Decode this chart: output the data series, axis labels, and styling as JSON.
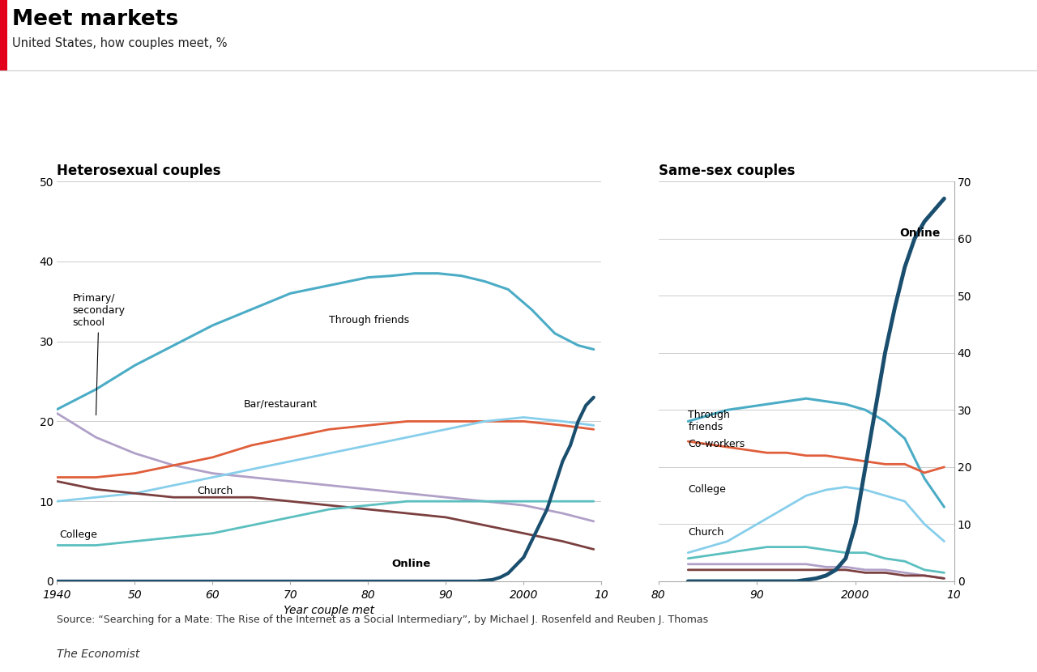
{
  "title": "Meet markets",
  "subtitle": "United States, how couples meet, %",
  "source": "Source: “Searching for a Mate: The Rise of the Internet as a Social Intermediary”, by Michael J. Rosenfeld and Reuben J. Thomas",
  "credit": "The Economist",
  "red_bar_color": "#e3001b",
  "het": {
    "title": "Heterosexual couples",
    "xlim": [
      1940,
      2010
    ],
    "ylim": [
      0,
      50
    ],
    "yticks": [
      0,
      10,
      20,
      30,
      40,
      50
    ],
    "xticks": [
      1940,
      1950,
      1960,
      1970,
      1980,
      1990,
      2000,
      2010
    ],
    "xticklabels": [
      "1940",
      "50",
      "60",
      "70",
      "80",
      "90",
      "2000",
      "10"
    ],
    "through_friends": {
      "x": [
        1940,
        1945,
        1950,
        1955,
        1960,
        1965,
        1970,
        1975,
        1980,
        1983,
        1986,
        1989,
        1992,
        1995,
        1998,
        2001,
        2004,
        2007,
        2009
      ],
      "y": [
        21.5,
        24,
        27,
        29.5,
        32,
        34,
        36,
        37,
        38,
        38.2,
        38.5,
        38.5,
        38.2,
        37.5,
        36.5,
        34,
        31,
        29.5,
        29
      ],
      "color": "#4bacc6",
      "lw": 2.2
    },
    "primary_school": {
      "x": [
        1940,
        1945,
        1950,
        1955,
        1960,
        1965,
        1970,
        1975,
        1980,
        1985,
        1990,
        1995,
        2000,
        2005,
        2009
      ],
      "y": [
        21,
        18,
        16,
        14.5,
        13.5,
        13,
        12.5,
        12,
        11.5,
        11,
        10.5,
        10,
        9.5,
        8.5,
        7.5
      ],
      "color": "#b0a0c8",
      "lw": 2.0
    },
    "bar_restaurant": {
      "x": [
        1940,
        1945,
        1950,
        1955,
        1960,
        1965,
        1970,
        1975,
        1980,
        1985,
        1990,
        1995,
        2000,
        2005,
        2009
      ],
      "y": [
        13,
        13,
        13.5,
        14.5,
        15.5,
        17,
        18,
        19,
        19.5,
        20,
        20,
        20,
        20,
        19.5,
        19
      ],
      "color": "#e05e3a",
      "lw": 2.0
    },
    "coworkers": {
      "x": [
        1940,
        1945,
        1950,
        1955,
        1960,
        1965,
        1970,
        1975,
        1980,
        1985,
        1990,
        1995,
        2000,
        2005,
        2009
      ],
      "y": [
        10,
        10.5,
        11,
        12,
        13,
        14,
        15,
        16,
        17,
        18,
        19,
        20,
        20.5,
        20,
        19.5
      ],
      "color": "#87ceeb",
      "lw": 2.0
    },
    "church": {
      "x": [
        1940,
        1945,
        1950,
        1955,
        1960,
        1965,
        1970,
        1975,
        1980,
        1985,
        1990,
        1995,
        2000,
        2005,
        2009
      ],
      "y": [
        12.5,
        11.5,
        11,
        10.5,
        10.5,
        10.5,
        10,
        9.5,
        9,
        8.5,
        8,
        7,
        6,
        5,
        4
      ],
      "color": "#7b3f3f",
      "lw": 2.0
    },
    "college": {
      "x": [
        1940,
        1945,
        1950,
        1955,
        1960,
        1965,
        1970,
        1975,
        1980,
        1985,
        1990,
        1995,
        2000,
        2005,
        2009
      ],
      "y": [
        4.5,
        4.5,
        5,
        5.5,
        6,
        7,
        8,
        9,
        9.5,
        10,
        10,
        10,
        10,
        10,
        10
      ],
      "color": "#5bbfbf",
      "lw": 2.0
    },
    "online": {
      "x": [
        1940,
        1975,
        1980,
        1985,
        1990,
        1992,
        1994,
        1996,
        1997,
        1998,
        1999,
        2000,
        2001,
        2002,
        2003,
        2004,
        2005,
        2006,
        2007,
        2008,
        2009
      ],
      "y": [
        0,
        0,
        0,
        0,
        0,
        0,
        0,
        0.2,
        0.5,
        1,
        2,
        3,
        5,
        7,
        9,
        12,
        15,
        17,
        20,
        22,
        23
      ],
      "color": "#1a4e6e",
      "lw": 3.0
    }
  },
  "same": {
    "title": "Same-sex couples",
    "xlim": [
      1980,
      2010
    ],
    "ylim": [
      0,
      70
    ],
    "yticks": [
      0,
      10,
      20,
      30,
      40,
      50,
      60,
      70
    ],
    "xticks": [
      1980,
      1990,
      2000,
      2010
    ],
    "xticklabels": [
      "80",
      "90",
      "2000",
      "10"
    ],
    "through_friends": {
      "x": [
        1983,
        1985,
        1987,
        1989,
        1991,
        1993,
        1995,
        1997,
        1999,
        2001,
        2003,
        2005,
        2007,
        2009
      ],
      "y": [
        28,
        29,
        30,
        30.5,
        31,
        31.5,
        32,
        31.5,
        31,
        30,
        28,
        25,
        18,
        13
      ],
      "color": "#4bacc6",
      "lw": 2.2
    },
    "coworkers": {
      "x": [
        1983,
        1985,
        1987,
        1989,
        1991,
        1993,
        1995,
        1997,
        1999,
        2001,
        2003,
        2005,
        2007,
        2009
      ],
      "y": [
        24.5,
        24,
        23.5,
        23,
        22.5,
        22.5,
        22,
        22,
        21.5,
        21,
        20.5,
        20.5,
        19,
        20
      ],
      "color": "#e05e3a",
      "lw": 2.0
    },
    "college": {
      "x": [
        1983,
        1985,
        1987,
        1989,
        1991,
        1993,
        1995,
        1997,
        1999,
        2001,
        2003,
        2005,
        2007,
        2009
      ],
      "y": [
        5,
        6,
        7,
        9,
        11,
        13,
        15,
        16,
        16.5,
        16,
        15,
        14,
        10,
        7
      ],
      "color": "#87ceeb",
      "lw": 2.0
    },
    "church": {
      "x": [
        1983,
        1985,
        1987,
        1989,
        1991,
        1993,
        1995,
        1997,
        1999,
        2001,
        2003,
        2005,
        2007,
        2009
      ],
      "y": [
        4,
        4.5,
        5,
        5.5,
        6,
        6,
        6,
        5.5,
        5,
        5,
        4,
        3.5,
        2,
        1.5
      ],
      "color": "#5bbfbf",
      "lw": 2.0
    },
    "primary_school": {
      "x": [
        1983,
        1985,
        1987,
        1989,
        1991,
        1993,
        1995,
        1997,
        1999,
        2001,
        2003,
        2005,
        2007,
        2009
      ],
      "y": [
        3,
        3,
        3,
        3,
        3,
        3,
        3,
        2.5,
        2.5,
        2,
        2,
        1.5,
        1,
        0.5
      ],
      "color": "#b0a0c8",
      "lw": 2.0
    },
    "bar_restaurant": {
      "x": [
        1983,
        1985,
        1987,
        1989,
        1991,
        1993,
        1995,
        1997,
        1999,
        2001,
        2003,
        2005,
        2007,
        2009
      ],
      "y": [
        2,
        2,
        2,
        2,
        2,
        2,
        2,
        2,
        2,
        1.5,
        1.5,
        1,
        1,
        0.5
      ],
      "color": "#7b3f3f",
      "lw": 2.0
    },
    "online": {
      "x": [
        1983,
        1988,
        1992,
        1994,
        1996,
        1997,
        1998,
        1999,
        2000,
        2001,
        2002,
        2003,
        2004,
        2005,
        2006,
        2007,
        2008,
        2009
      ],
      "y": [
        0,
        0,
        0,
        0,
        0.5,
        1,
        2,
        4,
        10,
        20,
        30,
        40,
        48,
        55,
        60,
        63,
        65,
        67
      ],
      "color": "#1a4e6e",
      "lw": 3.5
    }
  }
}
